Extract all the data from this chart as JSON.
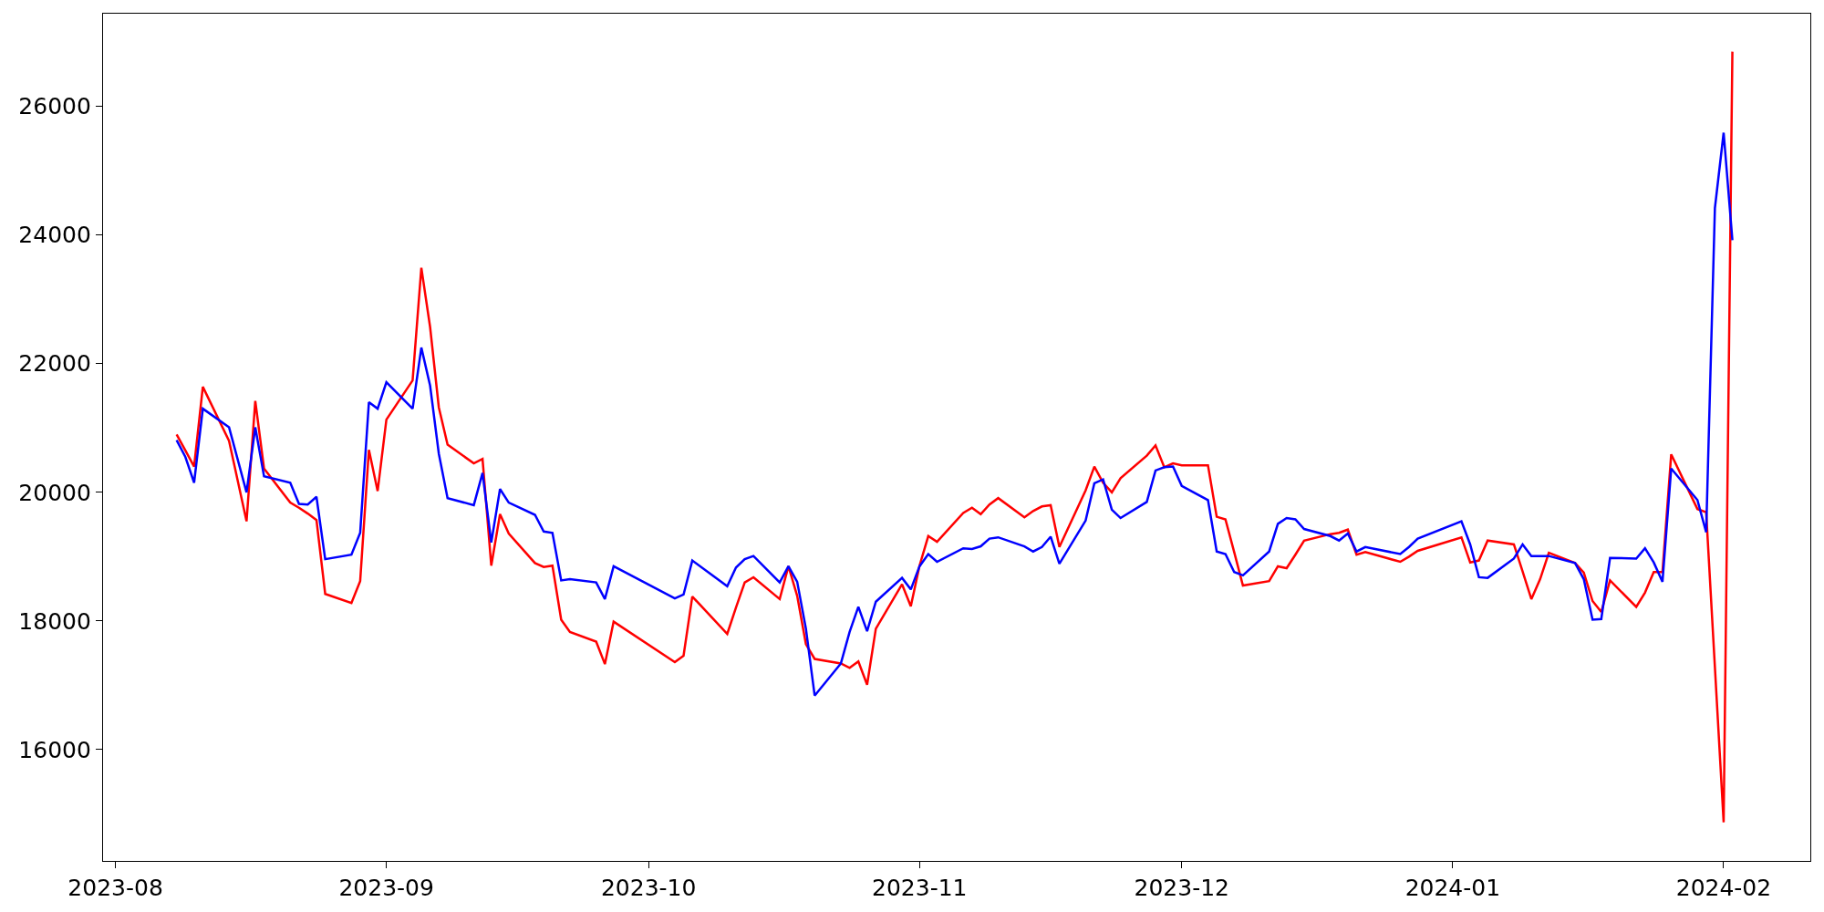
{
  "chart_data": {
    "type": "line",
    "x": [
      "2023-08-08",
      "2023-08-09",
      "2023-08-10",
      "2023-08-11",
      "2023-08-14",
      "2023-08-16",
      "2023-08-17",
      "2023-08-18",
      "2023-08-21",
      "2023-08-22",
      "2023-08-23",
      "2023-08-24",
      "2023-08-25",
      "2023-08-28",
      "2023-08-29",
      "2023-08-30",
      "2023-08-31",
      "2023-09-01",
      "2023-09-04",
      "2023-09-05",
      "2023-09-06",
      "2023-09-07",
      "2023-09-08",
      "2023-09-11",
      "2023-09-12",
      "2023-09-13",
      "2023-09-14",
      "2023-09-15",
      "2023-09-18",
      "2023-09-19",
      "2023-09-20",
      "2023-09-21",
      "2023-09-22",
      "2023-09-25",
      "2023-09-26",
      "2023-09-27",
      "2023-10-04",
      "2023-10-05",
      "2023-10-06",
      "2023-10-10",
      "2023-10-11",
      "2023-10-12",
      "2023-10-13",
      "2023-10-16",
      "2023-10-17",
      "2023-10-18",
      "2023-10-19",
      "2023-10-20",
      "2023-10-23",
      "2023-10-24",
      "2023-10-25",
      "2023-10-26",
      "2023-10-27",
      "2023-10-30",
      "2023-10-31",
      "2023-11-01",
      "2023-11-02",
      "2023-11-03",
      "2023-11-06",
      "2023-11-07",
      "2023-11-08",
      "2023-11-09",
      "2023-11-10",
      "2023-11-13",
      "2023-11-14",
      "2023-11-15",
      "2023-11-16",
      "2023-11-17",
      "2023-11-20",
      "2023-11-21",
      "2023-11-22",
      "2023-11-23",
      "2023-11-24",
      "2023-11-27",
      "2023-11-28",
      "2023-11-29",
      "2023-11-30",
      "2023-12-01",
      "2023-12-04",
      "2023-12-05",
      "2023-12-06",
      "2023-12-07",
      "2023-12-08",
      "2023-12-11",
      "2023-12-12",
      "2023-12-13",
      "2023-12-14",
      "2023-12-15",
      "2023-12-18",
      "2023-12-19",
      "2023-12-20",
      "2023-12-21",
      "2023-12-22",
      "2023-12-26",
      "2023-12-27",
      "2023-12-28",
      "2024-01-02",
      "2024-01-03",
      "2024-01-04",
      "2024-01-05",
      "2024-01-08",
      "2024-01-09",
      "2024-01-10",
      "2024-01-11",
      "2024-01-12",
      "2024-01-15",
      "2024-01-16",
      "2024-01-17",
      "2024-01-18",
      "2024-01-19",
      "2024-01-22",
      "2024-01-23",
      "2024-01-24",
      "2024-01-25",
      "2024-01-26",
      "2024-01-29",
      "2024-01-30",
      "2024-01-31",
      "2024-02-01",
      "2024-02-02"
    ],
    "series": [
      {
        "color": "#ff0000",
        "values": [
          20900,
          20650,
          20400,
          21640,
          20800,
          19550,
          21420,
          20370,
          19840,
          19760,
          19670,
          19570,
          18420,
          18280,
          18620,
          20660,
          20020,
          21130,
          21740,
          23490,
          22570,
          21320,
          20740,
          20450,
          20520,
          18860,
          19660,
          19360,
          18900,
          18840,
          18860,
          18020,
          17830,
          17680,
          17330,
          17990,
          17360,
          17460,
          18380,
          17800,
          18210,
          18600,
          18680,
          18340,
          18850,
          18390,
          17640,
          17410,
          17340,
          17270,
          17370,
          17010,
          17880,
          18570,
          18230,
          18860,
          19320,
          19230,
          19680,
          19760,
          19660,
          19810,
          19910,
          19610,
          19710,
          19780,
          19800,
          19150,
          20030,
          20400,
          20150,
          20000,
          20220,
          20570,
          20730,
          20390,
          20450,
          20420,
          20420,
          19620,
          19580,
          19070,
          18550,
          18620,
          18850,
          18820,
          19030,
          19250,
          19350,
          19370,
          19420,
          19030,
          19070,
          18920,
          19000,
          19090,
          19300,
          18910,
          18940,
          19250,
          19190,
          18770,
          18340,
          18650,
          19060,
          18900,
          18750,
          18310,
          18140,
          18630,
          18220,
          18440,
          18760,
          18760,
          20590,
          19740,
          19690,
          17280,
          14870,
          26850
        ]
      },
      {
        "color": "#0000ff",
        "values": [
          20810,
          20550,
          20150,
          21300,
          21010,
          20000,
          21010,
          20250,
          20150,
          19820,
          19810,
          19930,
          18960,
          19030,
          19370,
          21400,
          21300,
          21710,
          21300,
          22250,
          21660,
          20600,
          19910,
          19800,
          20300,
          19220,
          20050,
          19840,
          19650,
          19390,
          19370,
          18630,
          18650,
          18600,
          18340,
          18850,
          18350,
          18410,
          18940,
          18540,
          18830,
          18960,
          19010,
          18600,
          18850,
          18610,
          17880,
          16840,
          17340,
          17830,
          18220,
          17840,
          18300,
          18670,
          18490,
          18850,
          19040,
          18920,
          19130,
          19120,
          19160,
          19280,
          19300,
          19160,
          19080,
          19150,
          19310,
          18890,
          19560,
          20140,
          20200,
          19730,
          19600,
          19850,
          20340,
          20390,
          20400,
          20100,
          19880,
          19080,
          19040,
          18760,
          18710,
          19080,
          19510,
          19600,
          19580,
          19430,
          19320,
          19250,
          19360,
          19080,
          19150,
          19040,
          19150,
          19280,
          19550,
          19190,
          18680,
          18670,
          18970,
          19190,
          19010,
          19010,
          19010,
          18900,
          18650,
          18020,
          18030,
          18980,
          18970,
          19130,
          18910,
          18610,
          20370,
          19880,
          19380,
          24420,
          25590,
          23920
        ]
      }
    ],
    "xlim": [
      "2023-07-30T14:00",
      "2024-02-10T22:00"
    ],
    "xticks": [
      {
        "value": "2023-08-01",
        "label": "2023-08"
      },
      {
        "value": "2023-09-01",
        "label": "2023-09"
      },
      {
        "value": "2023-10-01",
        "label": "2023-10"
      },
      {
        "value": "2023-11-01",
        "label": "2023-11"
      },
      {
        "value": "2023-12-01",
        "label": "2023-12"
      },
      {
        "value": "2024-01-01",
        "label": "2024-01"
      },
      {
        "value": "2024-02-01",
        "label": "2024-02"
      }
    ],
    "ylim": [
      14270,
      27440
    ],
    "yticks": [
      16000,
      18000,
      20000,
      22000,
      24000,
      26000
    ]
  }
}
